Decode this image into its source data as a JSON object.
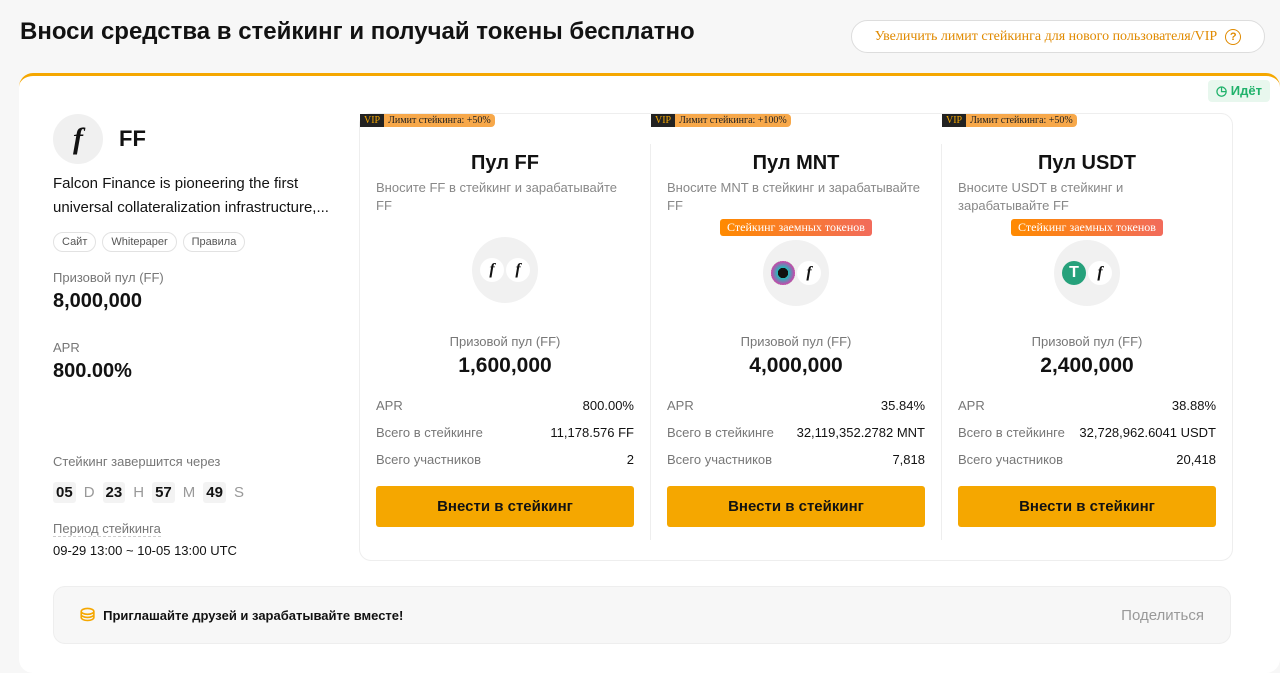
{
  "header": {
    "title": "Вноси средства в стейкинг и получай токены бесплатно",
    "vip_link": "Увеличить лимит стейкинга для нового пользователя/VIP"
  },
  "project": {
    "status": "Идёт",
    "token": "FF",
    "description": "Falcon Finance is pioneering the first universal collateralization infrastructure,...",
    "links": [
      "Сайт",
      "Whitepaper",
      "Правила"
    ],
    "prize_label": "Призовой пул (FF)",
    "prize": "8,000,000",
    "apr_label": "APR",
    "apr": "800.00%",
    "ends_label": "Стейкинг завершится через",
    "countdown": {
      "d": "05",
      "h": "23",
      "m": "57",
      "s": "49",
      "d_u": "D",
      "h_u": "H",
      "m_u": "M",
      "s_u": "S"
    },
    "period_label": "Период стейкинга",
    "period": "09-29 13:00 ~ 10-05 13:00 UTC"
  },
  "pools": [
    {
      "vip": "VIP",
      "limit": "Лимит стейкинга: +50%",
      "title": "Пул FF",
      "desc": "Вносите FF в стейкинг и зарабатывайте FF",
      "badge": "",
      "prize_label": "Призовой пул (FF)",
      "prize": "1,600,000",
      "apr_label": "APR",
      "apr": "800.00%",
      "staked_label": "Всего в стейкинге",
      "staked": "11,178.576 FF",
      "users_label": "Всего участников",
      "users": "2",
      "button": "Внести в стейкинг"
    },
    {
      "vip": "VIP",
      "limit": "Лимит стейкинга: +100%",
      "title": "Пул MNT",
      "desc": "Вносите MNT в стейкинг и зарабатывайте FF",
      "badge": "Стейкинг заемных токенов",
      "prize_label": "Призовой пул (FF)",
      "prize": "4,000,000",
      "apr_label": "APR",
      "apr": "35.84%",
      "staked_label": "Всего в стейкинге",
      "staked": "32,119,352.2782 MNT",
      "users_label": "Всего участников",
      "users": "7,818",
      "button": "Внести в стейкинг"
    },
    {
      "vip": "VIP",
      "limit": "Лимит стейкинга: +50%",
      "title": "Пул USDT",
      "desc": "Вносите USDT в стейкинг и зарабатывайте FF",
      "badge": "Стейкинг заемных токенов",
      "prize_label": "Призовой пул (FF)",
      "prize": "2,400,000",
      "apr_label": "APR",
      "apr": "38.88%",
      "staked_label": "Всего в стейкинге",
      "staked": "32,728,962.6041 USDT",
      "users_label": "Всего участников",
      "users": "20,418",
      "button": "Внести в стейкинг"
    }
  ],
  "invite": {
    "text": "Приглашайте друзей и зарабатывайте вместе!",
    "share": "Поделиться"
  },
  "colors": {
    "accent": "#f5a700",
    "status": "#20b26b"
  }
}
